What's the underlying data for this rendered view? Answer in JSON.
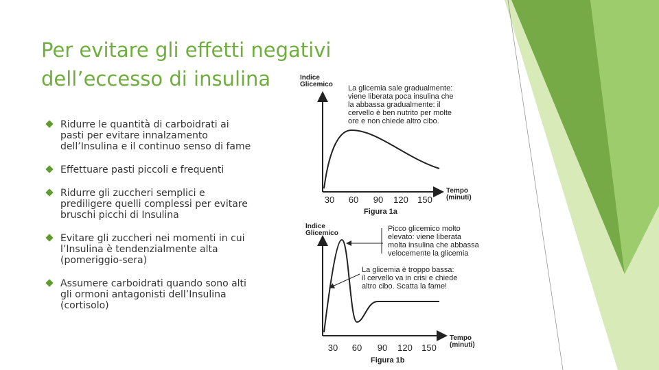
{
  "title": "Per evitare gli effetti negativi dell’eccesso di insulina",
  "bullets": [
    "Ridurre le quantità di carboidrati ai pasti per evitare innalzamento dell’Insulina e il continuo senso di fame",
    "Effettuare pasti piccoli e frequenti",
    "Ridurre gli zuccheri semplici e prediligere quelli complessi per evitare bruschi picchi di Insulina",
    "Evitare gli zuccheri nei momenti in cui l’Insulina è tendenzialmente alta (pomeriggio-sera)",
    "Assumere carboidrati quando sono alti gli ormoni antagonisti dell’Insulina (cortisolo)"
  ],
  "figures": [
    {
      "y_label": [
        "Indice",
        "Glicemico"
      ],
      "x_label": [
        "Tempo",
        "(minuti)"
      ],
      "ticks": [
        "30",
        "60",
        "90",
        "120",
        "150"
      ],
      "caption": "Figura 1a",
      "notes": [
        [
          "La glicemia sale gradualmente:",
          "viene liberata poca insulina che",
          "la abbassa gradualmente: il",
          "cervello è ben nutrito per molte",
          "ore e non chiede altro cibo."
        ]
      ]
    },
    {
      "y_label": [
        "Indice",
        "Glicemico"
      ],
      "x_label": [
        "Tempo",
        "(minuti)"
      ],
      "ticks": [
        "30",
        "60",
        "90",
        "120",
        "150"
      ],
      "caption": "Figura 1b",
      "notes": [
        [
          "Picco glicemico molto",
          "elevato: viene liberata",
          "molta insulina che abbassa",
          "velocemente la glicemia"
        ],
        [
          "La glicemia è troppo bassa:",
          "il cervello va in crisi e chiede",
          "altro cibo. Scatta la fame!"
        ]
      ]
    }
  ]
}
